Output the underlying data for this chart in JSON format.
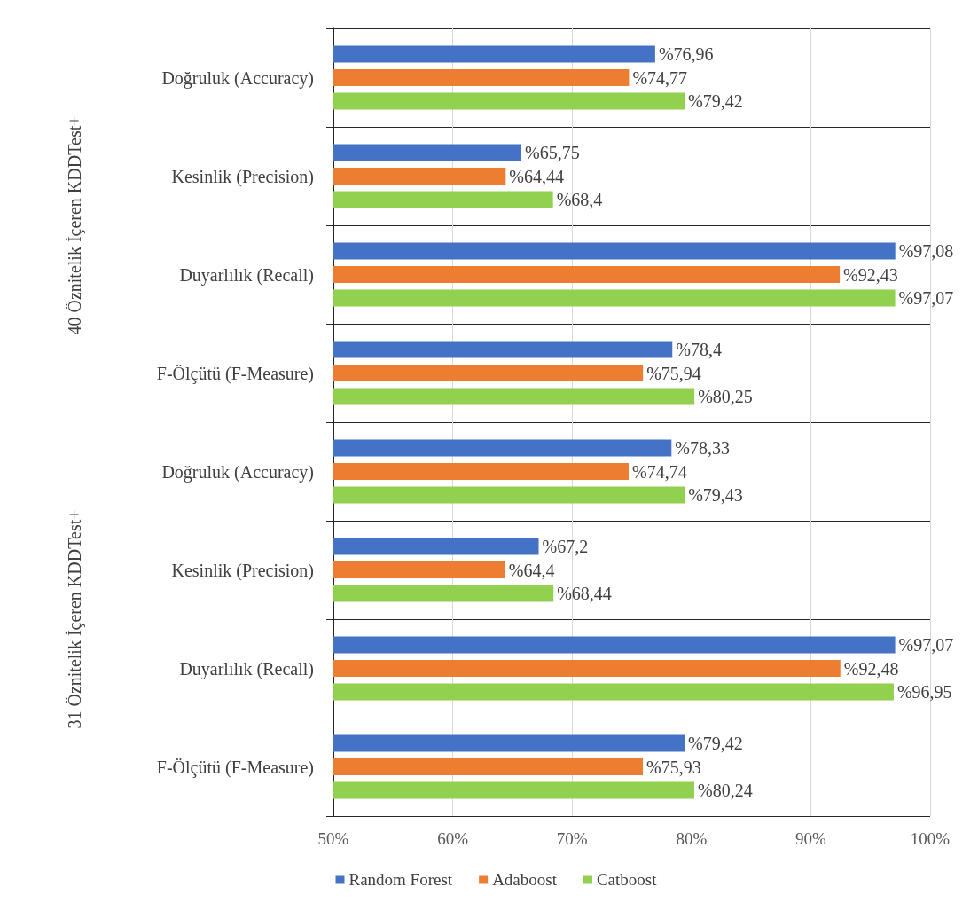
{
  "chart_data": {
    "type": "bar",
    "orientation": "horizontal",
    "categories": [
      "Doğruluk (Accuracy)",
      "Kesinlik (Precision)",
      "Duyarlılık (Recall)",
      "F-Ölçütü (F-Measure)",
      "Doğruluk (Accuracy)",
      "Kesinlik (Precision)",
      "Duyarlılık (Recall)",
      "F-Ölçütü (F-Measure)"
    ],
    "series": [
      {
        "name": "Random Forest",
        "color": "#4472c4",
        "values": [
          76.96,
          65.75,
          97.08,
          78.4,
          78.33,
          67.2,
          97.07,
          79.42
        ],
        "value_labels": [
          "%76,96",
          "%65,75",
          "%97,08",
          "%78,4",
          "%78,33",
          "%67,2",
          "%97,07",
          "%79,42"
        ]
      },
      {
        "name": "Adaboost",
        "color": "#ed7d31",
        "values": [
          74.77,
          64.44,
          92.43,
          75.94,
          74.74,
          64.4,
          92.48,
          75.93
        ],
        "value_labels": [
          "%74,77",
          "%64,44",
          "%92,43",
          "%75,94",
          "%74,74",
          "%64,4",
          "%92,48",
          "%75,93"
        ]
      },
      {
        "name": "Catboost",
        "color": "#92d050",
        "values": [
          79.42,
          68.4,
          97.07,
          80.25,
          79.43,
          68.44,
          96.95,
          80.24
        ],
        "value_labels": [
          "%79,42",
          "%68,4",
          "%97,07",
          "%80,25",
          "%79,43",
          "%68,44",
          "%96,95",
          "%80,24"
        ]
      }
    ],
    "annotations": [
      "40 Öznitelik İçeren KDDTest+",
      "31 Öznitelik İçeren KDDTest+"
    ],
    "xlim": [
      50,
      100
    ],
    "xticks": [
      {
        "value": 50,
        "label": "50%"
      },
      {
        "value": 60,
        "label": "60%"
      },
      {
        "value": 70,
        "label": "70%"
      },
      {
        "value": 80,
        "label": "80%"
      },
      {
        "value": 90,
        "label": "90%"
      },
      {
        "value": 100,
        "label": "100%"
      }
    ],
    "grid": "x",
    "legend": "bottom"
  }
}
